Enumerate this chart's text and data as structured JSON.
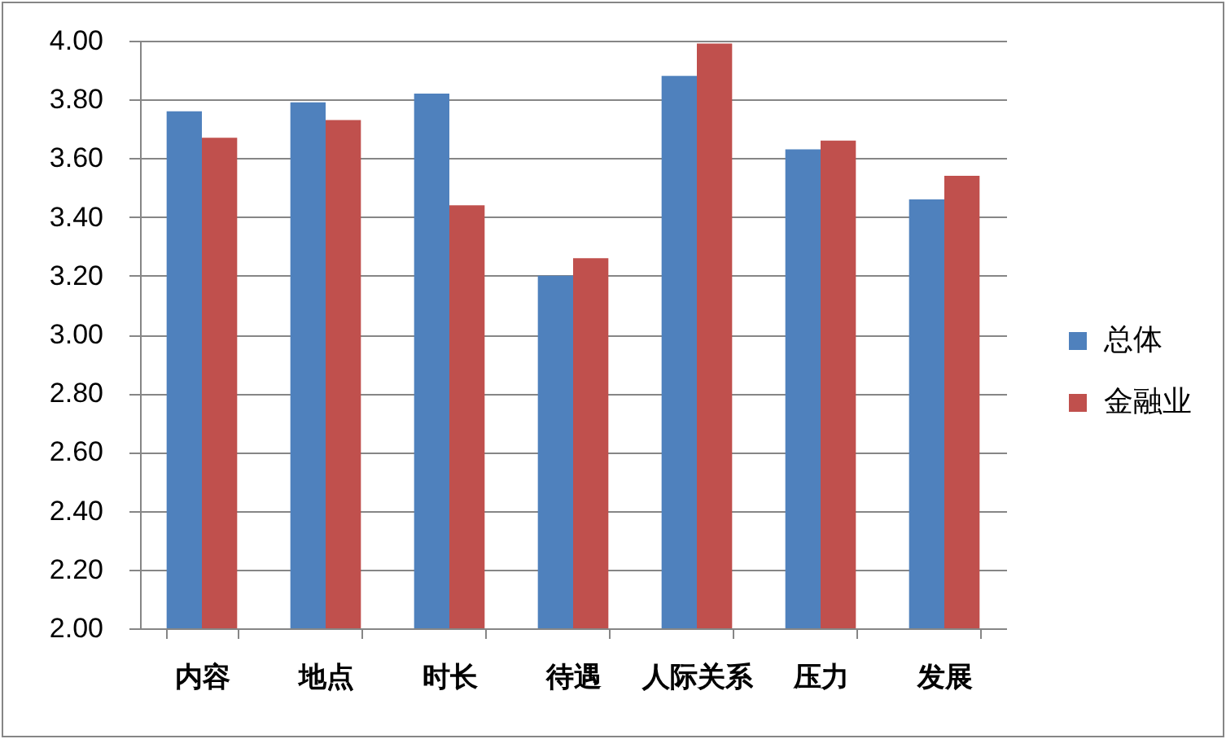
{
  "chart_data": {
    "type": "bar",
    "categories": [
      "内容",
      "地点",
      "时长",
      "待遇",
      "人际关系",
      "压力",
      "发展"
    ],
    "series": [
      {
        "name": "总体",
        "color": "#4f81bd",
        "values": [
          3.76,
          3.79,
          3.82,
          3.2,
          3.88,
          3.63,
          3.46
        ]
      },
      {
        "name": "金融业",
        "color": "#c0504d",
        "values": [
          3.67,
          3.73,
          3.44,
          3.26,
          3.99,
          3.66,
          3.54
        ]
      }
    ],
    "ylim": [
      2,
      4
    ],
    "yticks": [
      {
        "value": 2,
        "label": "2.00"
      },
      {
        "value": 2.2,
        "label": "2.20"
      },
      {
        "value": 2.4,
        "label": "2.40"
      },
      {
        "value": 2.6,
        "label": "2.60"
      },
      {
        "value": 2.8,
        "label": "2.80"
      },
      {
        "value": 3,
        "label": "3.00"
      },
      {
        "value": 3.2,
        "label": "3.20"
      },
      {
        "value": 3.4,
        "label": "3.40"
      },
      {
        "value": 3.6,
        "label": "3.60"
      },
      {
        "value": 3.8,
        "label": "3.80"
      },
      {
        "value": 4,
        "label": "4.00"
      }
    ],
    "grid": "y",
    "legend": "right"
  }
}
